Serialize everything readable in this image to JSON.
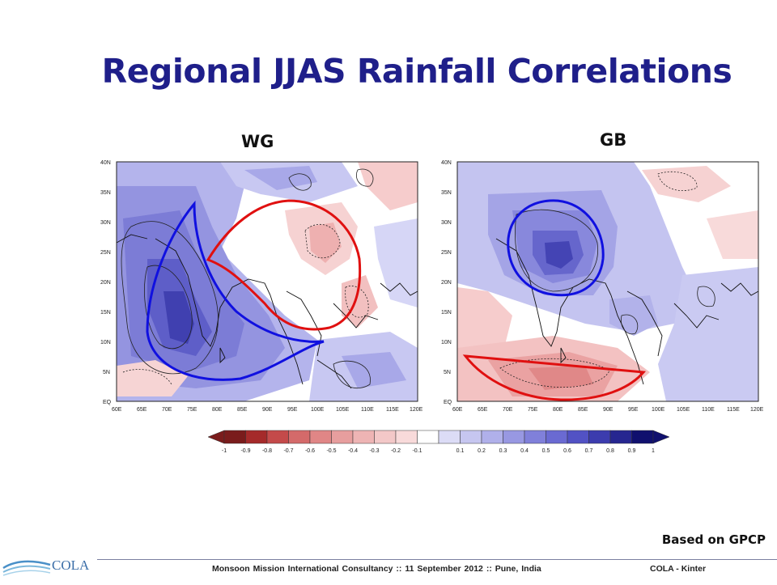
{
  "slide": {
    "title": "Regional JJAS Rainfall Correlations",
    "source_note": "Based on GPCP",
    "footer_text": "Monsoon Mission International Consultancy :: 11 September 2012 :: Pune, India",
    "footer_credit": "COLA - Kinter",
    "logo_text": "COLA"
  },
  "chart_data": [
    {
      "type": "heatmap",
      "title": "WG",
      "x_ticks": [
        "60E",
        "65E",
        "70E",
        "75E",
        "80E",
        "85E",
        "90E",
        "95E",
        "100E",
        "105E",
        "110E",
        "115E",
        "120E"
      ],
      "y_ticks": [
        "EQ",
        "5N",
        "10N",
        "15N",
        "20N",
        "25N",
        "30N",
        "35N",
        "40N"
      ],
      "xlim": [
        60,
        120
      ],
      "ylim": [
        0,
        40
      ],
      "field": "correlation of JJAS rainfall with WG region index"
    },
    {
      "type": "heatmap",
      "title": "GB",
      "x_ticks": [
        "60E",
        "65E",
        "70E",
        "75E",
        "80E",
        "85E",
        "90E",
        "95E",
        "100E",
        "105E",
        "110E",
        "115E",
        "120E"
      ],
      "y_ticks": [
        "EQ",
        "5N",
        "10N",
        "15N",
        "20N",
        "25N",
        "30N",
        "35N",
        "40N"
      ],
      "xlim": [
        60,
        120
      ],
      "ylim": [
        0,
        40
      ],
      "field": "correlation of JJAS rainfall with GB region index"
    }
  ],
  "colorbar": {
    "labels": [
      "-1",
      "-0.9",
      "-0.8",
      "-0.7",
      "-0.6",
      "-0.5",
      "-0.4",
      "-0.3",
      "-0.2",
      "-0.1",
      "0.1",
      "0.2",
      "0.3",
      "0.4",
      "0.5",
      "0.6",
      "0.7",
      "0.8",
      "0.9",
      "1"
    ],
    "colors": [
      "#7a1c1c",
      "#a52a2a",
      "#c44a4a",
      "#d46a6a",
      "#e08686",
      "#e79e9e",
      "#eeb4b4",
      "#f3c8c8",
      "#f8dada",
      "#ffffff",
      "#dcdcf6",
      "#c6c6f0",
      "#b0b0ea",
      "#9898e2",
      "#8080da",
      "#6a6ad2",
      "#5252c4",
      "#3c3cae",
      "#262690",
      "#10106e"
    ]
  }
}
